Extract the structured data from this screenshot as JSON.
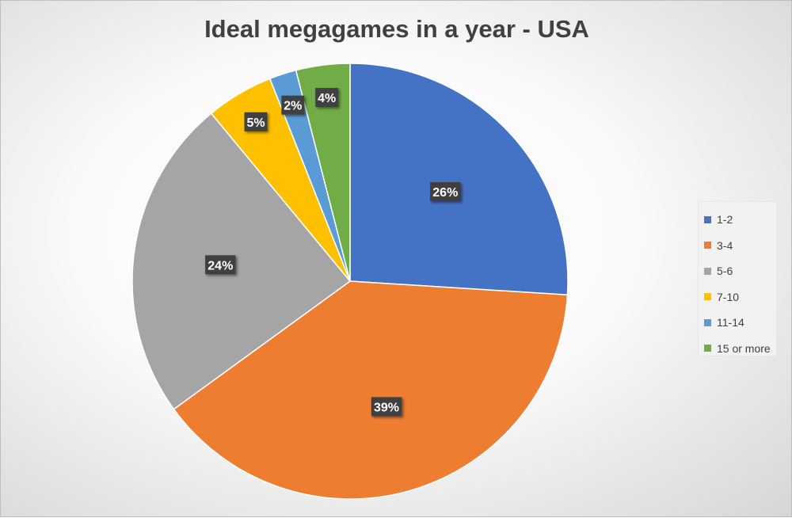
{
  "chart_data": {
    "type": "pie",
    "title": "Ideal megagames in a year - USA",
    "categories": [
      "1-2",
      "3-4",
      "5-6",
      "7-10",
      "11-14",
      "15 or more"
    ],
    "values": [
      26,
      39,
      24,
      5,
      2,
      4
    ],
    "labels": [
      "26%",
      "39%",
      "24%",
      "5%",
      "2%",
      "4%"
    ],
    "colors": [
      "#4472C4",
      "#ED7D31",
      "#A5A5A5",
      "#FFC000",
      "#5B9BD5",
      "#70AD47"
    ],
    "start_angle_deg": 0,
    "direction": "clockwise",
    "legend_position": "right"
  }
}
